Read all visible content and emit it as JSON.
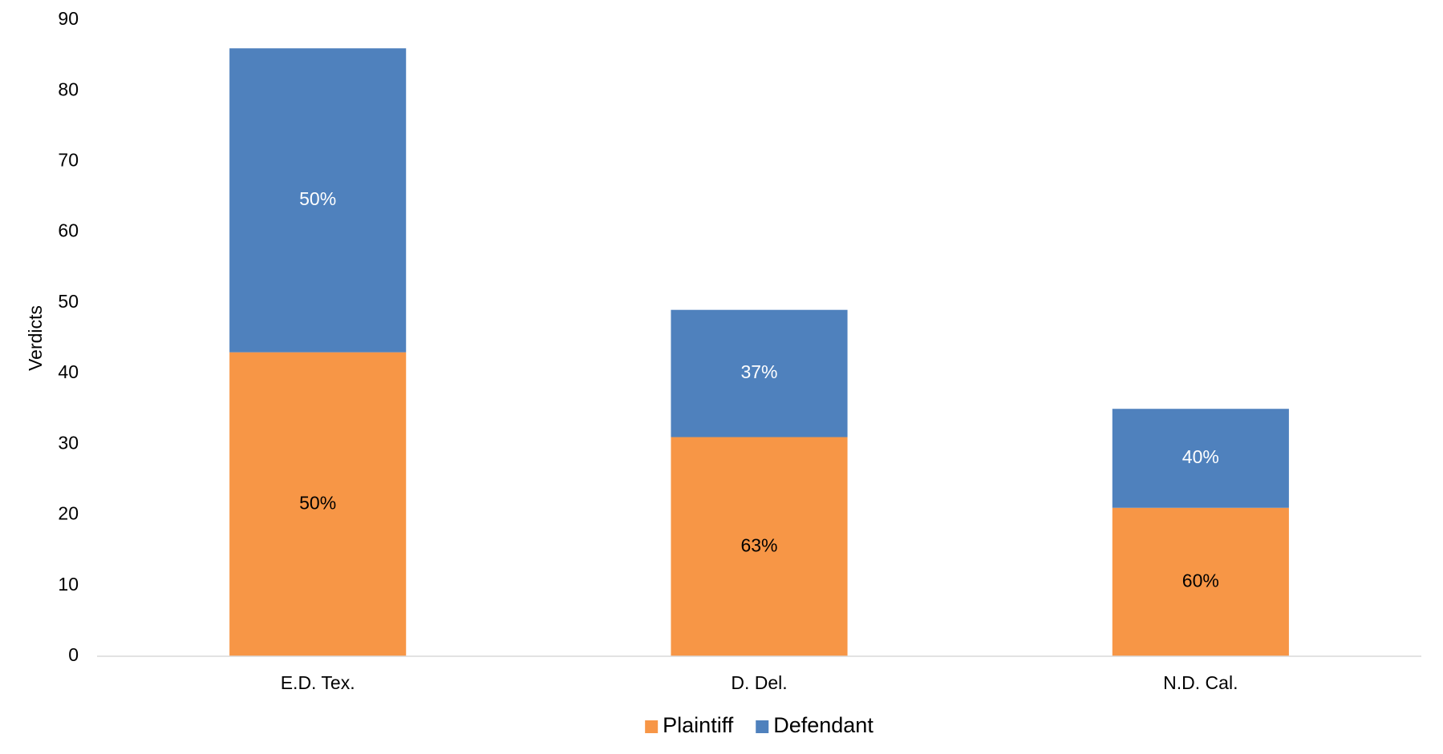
{
  "chart_data": {
    "type": "stacked_bar",
    "y_label": "Verdicts",
    "categories": [
      "E.D. Tex.",
      "D. Del.",
      "N.D. Cal."
    ],
    "series": [
      {
        "name": "Plaintiff",
        "color": "#f79646",
        "label_color": "#000000",
        "values": [
          43,
          31,
          21
        ],
        "share_labels": [
          "50%",
          "63%",
          "60%"
        ]
      },
      {
        "name": "Defendant",
        "color": "#4f81bd",
        "label_color": "#ffffff",
        "values": [
          43,
          18,
          14
        ],
        "share_labels": [
          "50%",
          "37%",
          "40%"
        ]
      }
    ],
    "ylim": [
      0,
      90
    ],
    "yticks": [
      0,
      10,
      20,
      30,
      40,
      50,
      60,
      70,
      80,
      90
    ],
    "grid": false,
    "legend": "bottom"
  }
}
